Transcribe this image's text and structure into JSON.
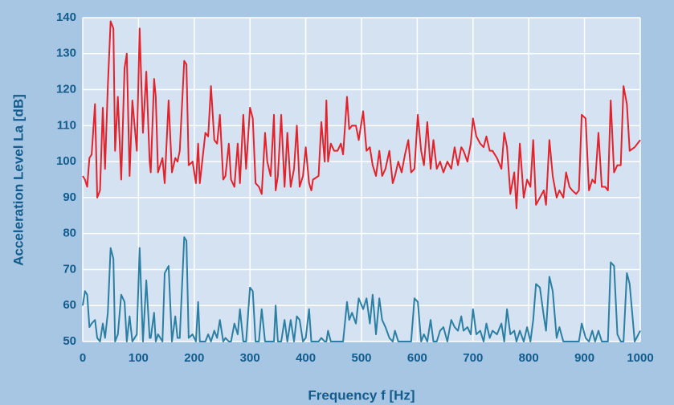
{
  "chart_data": {
    "type": "line",
    "xlabel": "Frequency f [Hz]",
    "ylabel": "Acceleration Level La [dB]",
    "x": [
      0,
      4,
      8,
      12,
      16,
      22,
      26,
      31,
      36,
      40,
      45,
      50,
      55,
      58,
      63,
      69,
      75,
      79,
      84,
      89,
      97,
      102,
      108,
      114,
      120,
      122,
      128,
      131,
      135,
      143,
      147,
      154,
      160,
      166,
      170,
      174,
      182,
      186,
      190,
      197,
      203,
      207,
      210,
      220,
      225,
      230,
      236,
      241,
      246,
      252,
      256,
      262,
      266,
      272,
      278,
      282,
      288,
      293,
      300,
      305,
      310,
      316,
      321,
      327,
      331,
      337,
      343,
      346,
      350,
      356,
      362,
      367,
      373,
      379,
      384,
      389,
      395,
      400,
      406,
      410,
      413,
      423,
      428,
      434,
      437,
      440,
      445,
      451,
      457,
      463,
      467,
      474,
      478,
      483,
      490,
      495,
      503,
      509,
      515,
      520,
      526,
      532,
      537,
      543,
      550,
      556,
      560,
      566,
      572,
      578,
      584,
      589,
      595,
      601,
      607,
      612,
      618,
      624,
      629,
      635,
      641,
      647,
      654,
      661,
      667,
      673,
      679,
      683,
      690,
      696,
      700,
      706,
      713,
      719,
      724,
      730,
      735,
      743,
      751,
      756,
      761,
      767,
      774,
      778,
      784,
      791,
      797,
      803,
      808,
      813,
      820,
      827,
      831,
      837,
      843,
      850,
      855,
      862,
      867,
      873,
      878,
      885,
      890,
      895,
      902,
      908,
      914,
      919,
      925,
      931,
      937,
      942,
      947,
      953,
      959,
      965,
      970,
      976,
      981,
      990,
      1000
    ],
    "series": [
      {
        "color": "#e3222b",
        "values": [
          96,
          95,
          93,
          101,
          102,
          116,
          90,
          92,
          115,
          98,
          121,
          139,
          137,
          103,
          118,
          95,
          126,
          130,
          96,
          117,
          103,
          137,
          108,
          125,
          100,
          97,
          123,
          118,
          97,
          101,
          94,
          117,
          97,
          101,
          100,
          103,
          128,
          127,
          99,
          100,
          94,
          105,
          94,
          108,
          107,
          121,
          106,
          105,
          113,
          95,
          96,
          105,
          95,
          93,
          105,
          94,
          113,
          98,
          115,
          112,
          94,
          93,
          91,
          108,
          100,
          96,
          113,
          92,
          96,
          113,
          93,
          108,
          93,
          98,
          110,
          93,
          96,
          104,
          94,
          92,
          95,
          96,
          111,
          100,
          117,
          100,
          105,
          103,
          103,
          105,
          102,
          118,
          109,
          110,
          110,
          106,
          114,
          103,
          104,
          99,
          96,
          103,
          96,
          98,
          103,
          94,
          96,
          100,
          97,
          102,
          106,
          97,
          98,
          113,
          103,
          99,
          111,
          98,
          106,
          98,
          100,
          97,
          100,
          98,
          104,
          99,
          104,
          103,
          100,
          105,
          112,
          107,
          105,
          104,
          107,
          103,
          103,
          101,
          98,
          108,
          104,
          91,
          97,
          87,
          105,
          90,
          95,
          93,
          106,
          88,
          90,
          92,
          88,
          106,
          96,
          90,
          92,
          90,
          97,
          93,
          92,
          91,
          92,
          113,
          112,
          92,
          95,
          94,
          108,
          93,
          93,
          92,
          117,
          97,
          99,
          99,
          121,
          116,
          103,
          104,
          106
        ]
      },
      {
        "color": "#2b7fa3",
        "values": [
          60,
          64,
          63,
          54,
          55,
          56,
          51,
          50,
          55,
          51,
          58,
          76,
          73,
          50,
          52,
          63,
          61,
          50,
          57,
          50,
          52,
          76,
          50,
          67,
          51,
          51,
          58,
          50,
          52,
          50,
          69,
          71,
          50,
          57,
          51,
          51,
          79,
          78,
          51,
          52,
          50,
          61,
          50,
          50,
          52,
          50,
          53,
          51,
          56,
          50,
          51,
          50,
          50,
          55,
          52,
          59,
          50,
          50,
          65,
          64,
          50,
          50,
          59,
          50,
          50,
          50,
          50,
          60,
          50,
          50,
          56,
          50,
          56,
          50,
          57,
          56,
          50,
          51,
          59,
          50,
          50,
          50,
          51,
          50,
          50,
          53,
          50,
          50,
          50,
          50,
          50,
          61,
          56,
          58,
          55,
          62,
          59,
          62,
          55,
          63,
          52,
          62,
          56,
          54,
          51,
          50,
          53,
          50,
          50,
          50,
          50,
          50,
          62,
          61,
          50,
          52,
          50,
          56,
          50,
          50,
          53,
          54,
          50,
          56,
          54,
          53,
          57,
          53,
          54,
          52,
          59,
          52,
          53,
          50,
          55,
          51,
          53,
          52,
          55,
          50,
          59,
          52,
          53,
          50,
          53,
          50,
          54,
          50,
          56,
          66,
          65,
          57,
          53,
          68,
          64,
          51,
          54,
          50,
          50,
          50,
          50,
          50,
          50,
          55,
          51,
          50,
          53,
          50,
          53,
          50,
          50,
          50,
          72,
          71,
          52,
          50,
          50,
          69,
          66,
          50,
          53
        ]
      }
    ],
    "xlim": [
      0,
      1000
    ],
    "xticks": [
      0,
      100,
      200,
      300,
      400,
      500,
      600,
      700,
      800,
      900,
      1000
    ],
    "ylim": [
      50,
      140
    ],
    "yticks": [
      50,
      60,
      70,
      80,
      90,
      100,
      110,
      120,
      130,
      140
    ],
    "grid": true
  }
}
